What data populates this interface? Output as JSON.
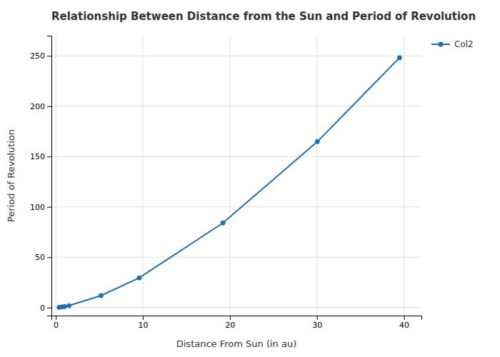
{
  "chart_data": {
    "type": "line",
    "title": "Relationship Between Distance from the Sun and Period of Revolution",
    "x_label": "Distance From Sun (in au)",
    "y_label": "Period of Revolution",
    "x": [
      0.39,
      0.72,
      1.0,
      1.52,
      5.2,
      9.58,
      19.2,
      30.05,
      39.48
    ],
    "series": [
      {
        "name": "Col2",
        "color": "#2170ae",
        "marker": "circle",
        "values": [
          0.24,
          0.62,
          1.0,
          1.88,
          11.86,
          29.46,
          84.01,
          164.8,
          248.09
        ]
      }
    ],
    "xlim": [
      -0.5,
      42
    ],
    "ylim": [
      -8,
      270
    ],
    "xticks": [
      0,
      10,
      20,
      30,
      40
    ],
    "yticks": [
      0,
      50,
      100,
      150,
      200,
      250
    ],
    "grid": true,
    "legend": "right"
  }
}
